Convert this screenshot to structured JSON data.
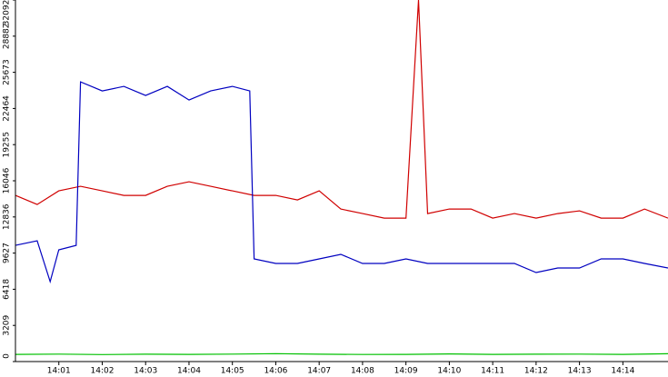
{
  "chart_data": {
    "type": "line",
    "xlim": [
      0,
      15.04
    ],
    "xticks": [
      {
        "value": 1,
        "label": "14:01"
      },
      {
        "value": 2,
        "label": "14:02"
      },
      {
        "value": 3,
        "label": "14:03"
      },
      {
        "value": 4,
        "label": "14:04"
      },
      {
        "value": 5,
        "label": "14:05"
      },
      {
        "value": 6,
        "label": "14:06"
      },
      {
        "value": 7,
        "label": "14:07"
      },
      {
        "value": 8,
        "label": "14:08"
      },
      {
        "value": 9,
        "label": "14:09"
      },
      {
        "value": 10,
        "label": "14:10"
      },
      {
        "value": 11,
        "label": "14:11"
      },
      {
        "value": 12,
        "label": "14:12"
      },
      {
        "value": 13,
        "label": "14:13"
      },
      {
        "value": 14,
        "label": "14:14"
      }
    ],
    "ylim": [
      0,
      32092
    ],
    "yticks": [
      0,
      3209,
      6418,
      9627,
      12836,
      16046,
      19255,
      22464,
      25673,
      28882,
      32092
    ],
    "series": [
      {
        "color": "#d00000",
        "x": [
          0,
          0.5,
          1,
          1.5,
          2,
          2.5,
          3,
          3.5,
          4,
          4.5,
          5,
          5.5,
          6,
          6.5,
          7,
          7.5,
          8,
          8.5,
          9,
          9.29,
          9.5,
          10,
          10.5,
          11,
          11.5,
          12,
          12.5,
          13,
          13.5,
          14,
          14.5,
          15.04
        ],
        "values": [
          14750,
          13944,
          15153,
          15556,
          15153,
          14750,
          14750,
          15556,
          15959,
          15556,
          15153,
          14750,
          14750,
          14347,
          15153,
          13541,
          13138,
          12735,
          12735,
          32092,
          13138,
          13541,
          13541,
          12735,
          13138,
          12735,
          13138,
          13380,
          12735,
          12735,
          13541,
          12735
        ]
      },
      {
        "color": "#0000c0",
        "x": [
          0,
          0.5,
          0.8,
          1,
          1.4,
          1.5,
          2,
          2.5,
          3,
          3.5,
          4,
          4.5,
          5,
          5.4,
          5.5,
          6,
          6.5,
          7,
          7.5,
          8,
          8.5,
          9,
          9.5,
          10,
          10.5,
          11,
          11.5,
          12,
          12.5,
          13,
          13.5,
          14,
          14.5,
          15.04
        ],
        "values": [
          10317,
          10720,
          7093,
          9914,
          10317,
          24825,
          24019,
          24422,
          23616,
          24422,
          23213,
          24019,
          24422,
          24019,
          9108,
          8705,
          8705,
          9108,
          9511,
          8705,
          8705,
          9108,
          8705,
          8705,
          8705,
          8705,
          8705,
          7899,
          8302,
          8302,
          9108,
          9108,
          8705,
          8302
        ]
      },
      {
        "color": "#00c000",
        "x": [
          0,
          1,
          2,
          3,
          4,
          5,
          6,
          7,
          8,
          9,
          10,
          11,
          12,
          13,
          14,
          15.04
        ],
        "values": [
          640,
          660,
          620,
          650,
          640,
          660,
          700,
          650,
          630,
          640,
          680,
          640,
          650,
          660,
          640,
          690
        ]
      }
    ]
  }
}
